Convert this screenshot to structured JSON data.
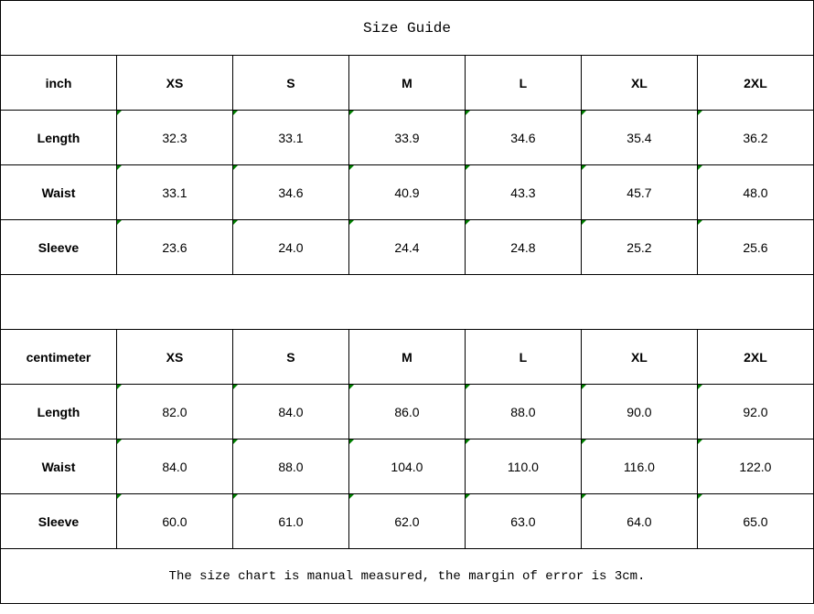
{
  "title": "Size Guide",
  "sizes": [
    "XS",
    "S",
    "M",
    "L",
    "XL",
    "2XL"
  ],
  "inch": {
    "unit": "inch",
    "rows": [
      {
        "label": "Length",
        "values": [
          "32.3",
          "33.1",
          "33.9",
          "34.6",
          "35.4",
          "36.2"
        ]
      },
      {
        "label": "Waist",
        "values": [
          "33.1",
          "34.6",
          "40.9",
          "43.3",
          "45.7",
          "48.0"
        ]
      },
      {
        "label": "Sleeve",
        "values": [
          "23.6",
          "24.0",
          "24.4",
          "24.8",
          "25.2",
          "25.6"
        ]
      }
    ]
  },
  "cm": {
    "unit": "centimeter",
    "rows": [
      {
        "label": "Length",
        "values": [
          "82.0",
          "84.0",
          "86.0",
          "88.0",
          "90.0",
          "92.0"
        ]
      },
      {
        "label": "Waist",
        "values": [
          "84.0",
          "88.0",
          "104.0",
          "110.0",
          "116.0",
          "122.0"
        ]
      },
      {
        "label": "Sleeve",
        "values": [
          "60.0",
          "61.0",
          "62.0",
          "63.0",
          "64.0",
          "65.0"
        ]
      }
    ]
  },
  "footer": "The size chart is manual measured, the margin of error is 3cm.",
  "colors": {
    "cell_marker": "#008000",
    "border": "#000000"
  }
}
